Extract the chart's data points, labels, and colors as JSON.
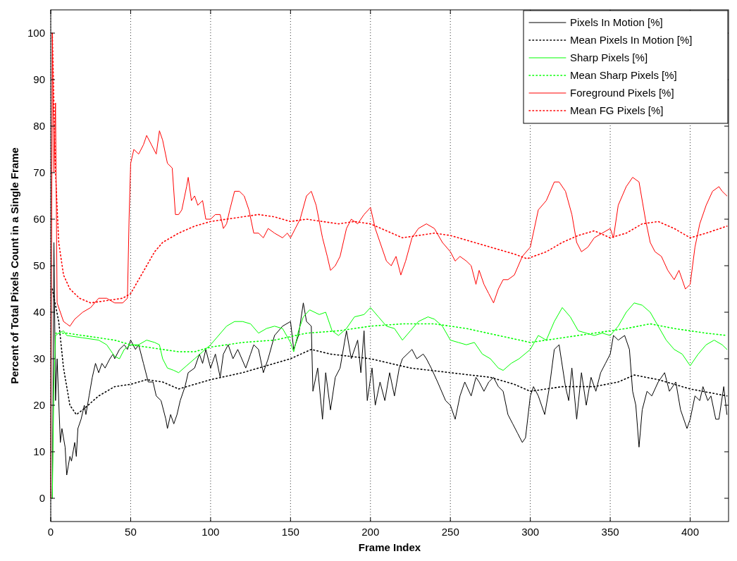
{
  "chart_data": {
    "type": "line",
    "xlabel": "Frame Index",
    "ylabel": "Percent of Total Pixels Count in a Single Frame",
    "xlim": [
      0,
      424
    ],
    "xticks": [
      0,
      50,
      100,
      150,
      200,
      250,
      300,
      350,
      400
    ],
    "ylim": [
      -5,
      105
    ],
    "yticks": [
      0,
      10,
      20,
      30,
      40,
      50,
      60,
      70,
      80,
      90,
      100
    ],
    "grid": "x",
    "legend": "top right",
    "marker": "none",
    "series": [
      {
        "name": "Pixels In Motion [%]",
        "color": "#000000",
        "line_style": "solid",
        "x": [
          1,
          2,
          3,
          4,
          6,
          7,
          9,
          10,
          12,
          13,
          15,
          16,
          17,
          19,
          21,
          22,
          24,
          26,
          28,
          30,
          32,
          34,
          37,
          39,
          40,
          43,
          46,
          48,
          50,
          53,
          55,
          58,
          61,
          64,
          66,
          69,
          72,
          73,
          75,
          77,
          79,
          81,
          84,
          86,
          90,
          93,
          95,
          97,
          100,
          103,
          106,
          108,
          111,
          114,
          117,
          122,
          125,
          127,
          130,
          133,
          136,
          140,
          145,
          150,
          152,
          155,
          158,
          160,
          163,
          164,
          167,
          170,
          172,
          175,
          178,
          181,
          185,
          188,
          192,
          194,
          196,
          198,
          201,
          203,
          206,
          209,
          212,
          215,
          218,
          220,
          223,
          226,
          229,
          233,
          235,
          238,
          242,
          247,
          250,
          253,
          256,
          259,
          263,
          266,
          268,
          271,
          274,
          277,
          280,
          283,
          286,
          289,
          292,
          295,
          297,
          300,
          302,
          305,
          309,
          312,
          315,
          318,
          322,
          324,
          326,
          329,
          332,
          335,
          338,
          341,
          344,
          347,
          350,
          352,
          355,
          359,
          362,
          364,
          366,
          368,
          370,
          373,
          376,
          380,
          384,
          387,
          391,
          394,
          398,
          400,
          403,
          406,
          408,
          411,
          413,
          416,
          418,
          421,
          423
        ],
        "values": [
          0,
          55,
          21,
          30,
          12,
          15,
          11,
          5,
          9,
          8,
          12,
          9,
          15,
          17,
          20,
          18,
          22,
          26,
          29,
          27,
          29,
          28,
          30,
          31,
          30,
          32,
          33,
          32,
          34,
          32,
          33,
          29,
          25,
          25,
          22,
          21,
          17,
          15,
          18,
          16,
          18,
          21,
          24,
          27,
          28,
          31,
          29,
          32,
          28,
          31,
          26,
          31,
          33,
          30,
          32,
          28,
          31,
          33,
          32,
          27,
          30,
          35,
          37,
          38,
          32,
          35,
          42,
          38,
          37,
          23,
          28,
          17,
          27,
          19,
          26,
          28,
          36,
          30,
          34,
          27,
          36,
          21,
          28,
          20,
          25,
          21,
          27,
          22,
          28,
          30,
          31,
          32,
          30,
          31,
          30,
          28,
          25,
          21,
          20,
          17,
          22,
          25,
          22,
          26,
          25,
          23,
          25,
          26,
          24,
          23,
          18,
          16,
          14,
          12,
          13,
          22,
          24,
          22,
          18,
          24,
          32,
          33,
          24,
          21,
          28,
          17,
          27,
          20,
          26,
          23,
          27,
          29,
          31,
          35,
          34,
          35,
          32,
          23,
          20,
          11,
          19,
          23,
          22,
          25,
          27,
          23,
          25,
          19,
          15,
          17,
          22,
          21,
          24,
          21,
          22,
          17,
          17,
          24,
          18
        ]
      },
      {
        "name": "Mean Pixels In Motion  [%]",
        "color": "#000000",
        "line_style": "dotted",
        "x": [
          1,
          5,
          8,
          12,
          16,
          20,
          30,
          40,
          50,
          60,
          70,
          80,
          90,
          100,
          120,
          140,
          150,
          163,
          175,
          200,
          225,
          250,
          275,
          290,
          300,
          320,
          340,
          355,
          365,
          380,
          400,
          423
        ],
        "values": [
          45,
          38,
          28,
          20,
          18,
          19,
          22,
          24,
          24.5,
          25.5,
          25,
          23.5,
          24.5,
          25.5,
          27,
          29,
          30,
          32,
          31,
          30,
          28,
          27,
          26,
          24.5,
          23,
          24,
          24,
          25,
          26.5,
          25.5,
          23.5,
          22
        ]
      },
      {
        "name": "Sharp Pixels [%]",
        "color": "#00ff00",
        "line_style": "solid",
        "x": [
          1,
          2,
          3,
          5,
          8,
          10,
          20,
          30,
          35,
          40,
          43,
          46,
          50,
          55,
          60,
          65,
          68,
          70,
          73,
          77,
          80,
          85,
          90,
          95,
          100,
          105,
          110,
          115,
          120,
          125,
          130,
          135,
          140,
          145,
          150,
          152,
          155,
          158,
          162,
          168,
          172,
          176,
          180,
          185,
          190,
          196,
          200,
          205,
          210,
          215,
          220,
          225,
          230,
          236,
          240,
          245,
          250,
          255,
          260,
          265,
          270,
          275,
          280,
          283,
          288,
          293,
          300,
          305,
          310,
          315,
          320,
          325,
          330,
          335,
          340,
          345,
          350,
          355,
          360,
          365,
          370,
          375,
          380,
          385,
          390,
          395,
          400,
          405,
          410,
          415,
          420,
          423
        ],
        "values": [
          0,
          25,
          35,
          35.5,
          36,
          35,
          34.5,
          34,
          33,
          30.5,
          30,
          32,
          33,
          33,
          34,
          33.5,
          33,
          30,
          28,
          27.5,
          27,
          28.5,
          30,
          31.5,
          33,
          35,
          37,
          38,
          38,
          37.5,
          35.5,
          36.5,
          37,
          36.5,
          33.5,
          31.5,
          36,
          39,
          40.5,
          39.5,
          40,
          36,
          35,
          36.5,
          39,
          39.5,
          41,
          39,
          37,
          36.5,
          34,
          36,
          38,
          39,
          38.5,
          37,
          34,
          33.5,
          33,
          33.5,
          31,
          30,
          28,
          27.5,
          29,
          30,
          32,
          35,
          34,
          38,
          41,
          39,
          36,
          35.5,
          35,
          35.5,
          35,
          37,
          40,
          42,
          41.5,
          40,
          37,
          34,
          32,
          31,
          28.5,
          31,
          33,
          34,
          33,
          32
        ]
      },
      {
        "name": "Mean Sharp Pixels [%]",
        "color": "#00ff00",
        "line_style": "dotted",
        "x": [
          3,
          10,
          20,
          30,
          40,
          50,
          60,
          70,
          80,
          90,
          100,
          120,
          140,
          160,
          180,
          200,
          220,
          240,
          260,
          280,
          300,
          320,
          340,
          360,
          375,
          390,
          410,
          423
        ],
        "values": [
          35.5,
          35.5,
          35,
          34.5,
          34,
          33,
          32.5,
          32,
          31.5,
          31.5,
          32.5,
          33.5,
          34,
          35.5,
          36,
          37,
          37.5,
          37.5,
          36.5,
          35,
          33.5,
          34.5,
          35.5,
          36.5,
          37.5,
          36.5,
          35.5,
          35
        ]
      },
      {
        "name": "Foreground Pixels [%]",
        "color": "#ff0000",
        "line_style": "solid",
        "x": [
          0,
          1,
          2,
          3,
          4,
          6,
          8,
          10,
          12,
          15,
          20,
          25,
          30,
          35,
          40,
          45,
          48,
          49,
          50,
          52,
          55,
          58,
          60,
          63,
          66,
          68,
          70,
          73,
          76,
          78,
          80,
          82,
          85,
          86,
          88,
          90,
          92,
          95,
          97,
          100,
          103,
          106,
          108,
          110,
          112,
          115,
          118,
          121,
          124,
          127,
          130,
          133,
          136,
          140,
          145,
          148,
          150,
          153,
          156,
          160,
          163,
          166,
          170,
          173,
          175,
          178,
          181,
          185,
          188,
          192,
          196,
          200,
          203,
          206,
          210,
          213,
          216,
          219,
          222,
          226,
          230,
          235,
          240,
          245,
          250,
          253,
          256,
          260,
          263,
          266,
          268,
          271,
          274,
          277,
          280,
          283,
          286,
          290,
          295,
          300,
          305,
          310,
          315,
          318,
          322,
          326,
          329,
          332,
          336,
          340,
          345,
          350,
          352,
          355,
          360,
          364,
          368,
          372,
          375,
          378,
          382,
          386,
          390,
          393,
          397,
          400,
          403,
          406,
          410,
          414,
          418,
          420,
          423
        ],
        "values": [
          0,
          100,
          70,
          85,
          42,
          40,
          38,
          37.5,
          37,
          38.5,
          40,
          41,
          43,
          43,
          42,
          42,
          43,
          60,
          72,
          75,
          74,
          76,
          78,
          76,
          74,
          79,
          77,
          72,
          71,
          61,
          61,
          62,
          67,
          69,
          64,
          65,
          63,
          64,
          60,
          60,
          61,
          61,
          58,
          59,
          62,
          66,
          66,
          65,
          62,
          57,
          57,
          56,
          58,
          57,
          56,
          57,
          56,
          58,
          60,
          65,
          66,
          63,
          56,
          52,
          49,
          50,
          52,
          58,
          60,
          59,
          61,
          62.5,
          58,
          55,
          51,
          50,
          52,
          48,
          51,
          56,
          58,
          59,
          58,
          55,
          53,
          51,
          52,
          51,
          50,
          46,
          49,
          46,
          44,
          42,
          45,
          47,
          47,
          48,
          52,
          54,
          62,
          64,
          68,
          68,
          66,
          61,
          55,
          53,
          54,
          56,
          57,
          58,
          56,
          63,
          67,
          69,
          68,
          60,
          55,
          53,
          52,
          49,
          47,
          49,
          45,
          46,
          54,
          59,
          63,
          66,
          67,
          66,
          65
        ]
      },
      {
        "name": "Mean FG Pixels [%]",
        "color": "#ff0000",
        "line_style": "dotted",
        "x": [
          1,
          3,
          5,
          8,
          12,
          18,
          25,
          35,
          45,
          50,
          55,
          60,
          65,
          70,
          80,
          90,
          100,
          110,
          120,
          130,
          140,
          150,
          160,
          170,
          180,
          190,
          200,
          210,
          220,
          230,
          240,
          250,
          260,
          270,
          280,
          290,
          298,
          310,
          320,
          330,
          340,
          350,
          360,
          370,
          380,
          390,
          400,
          410,
          423
        ],
        "values": [
          100,
          70,
          55,
          48,
          45,
          43,
          42,
          42.5,
          43,
          44,
          47,
          50,
          53,
          55,
          57,
          58.5,
          59.5,
          60,
          60.5,
          61,
          60.5,
          59.5,
          60,
          59.5,
          59,
          59.5,
          59,
          57.5,
          56,
          56.5,
          57,
          56.5,
          55.5,
          54.5,
          53.5,
          52.5,
          51.5,
          53,
          55,
          56.5,
          57.5,
          56,
          57,
          59,
          59.5,
          58,
          56,
          57,
          58.5
        ]
      }
    ]
  }
}
